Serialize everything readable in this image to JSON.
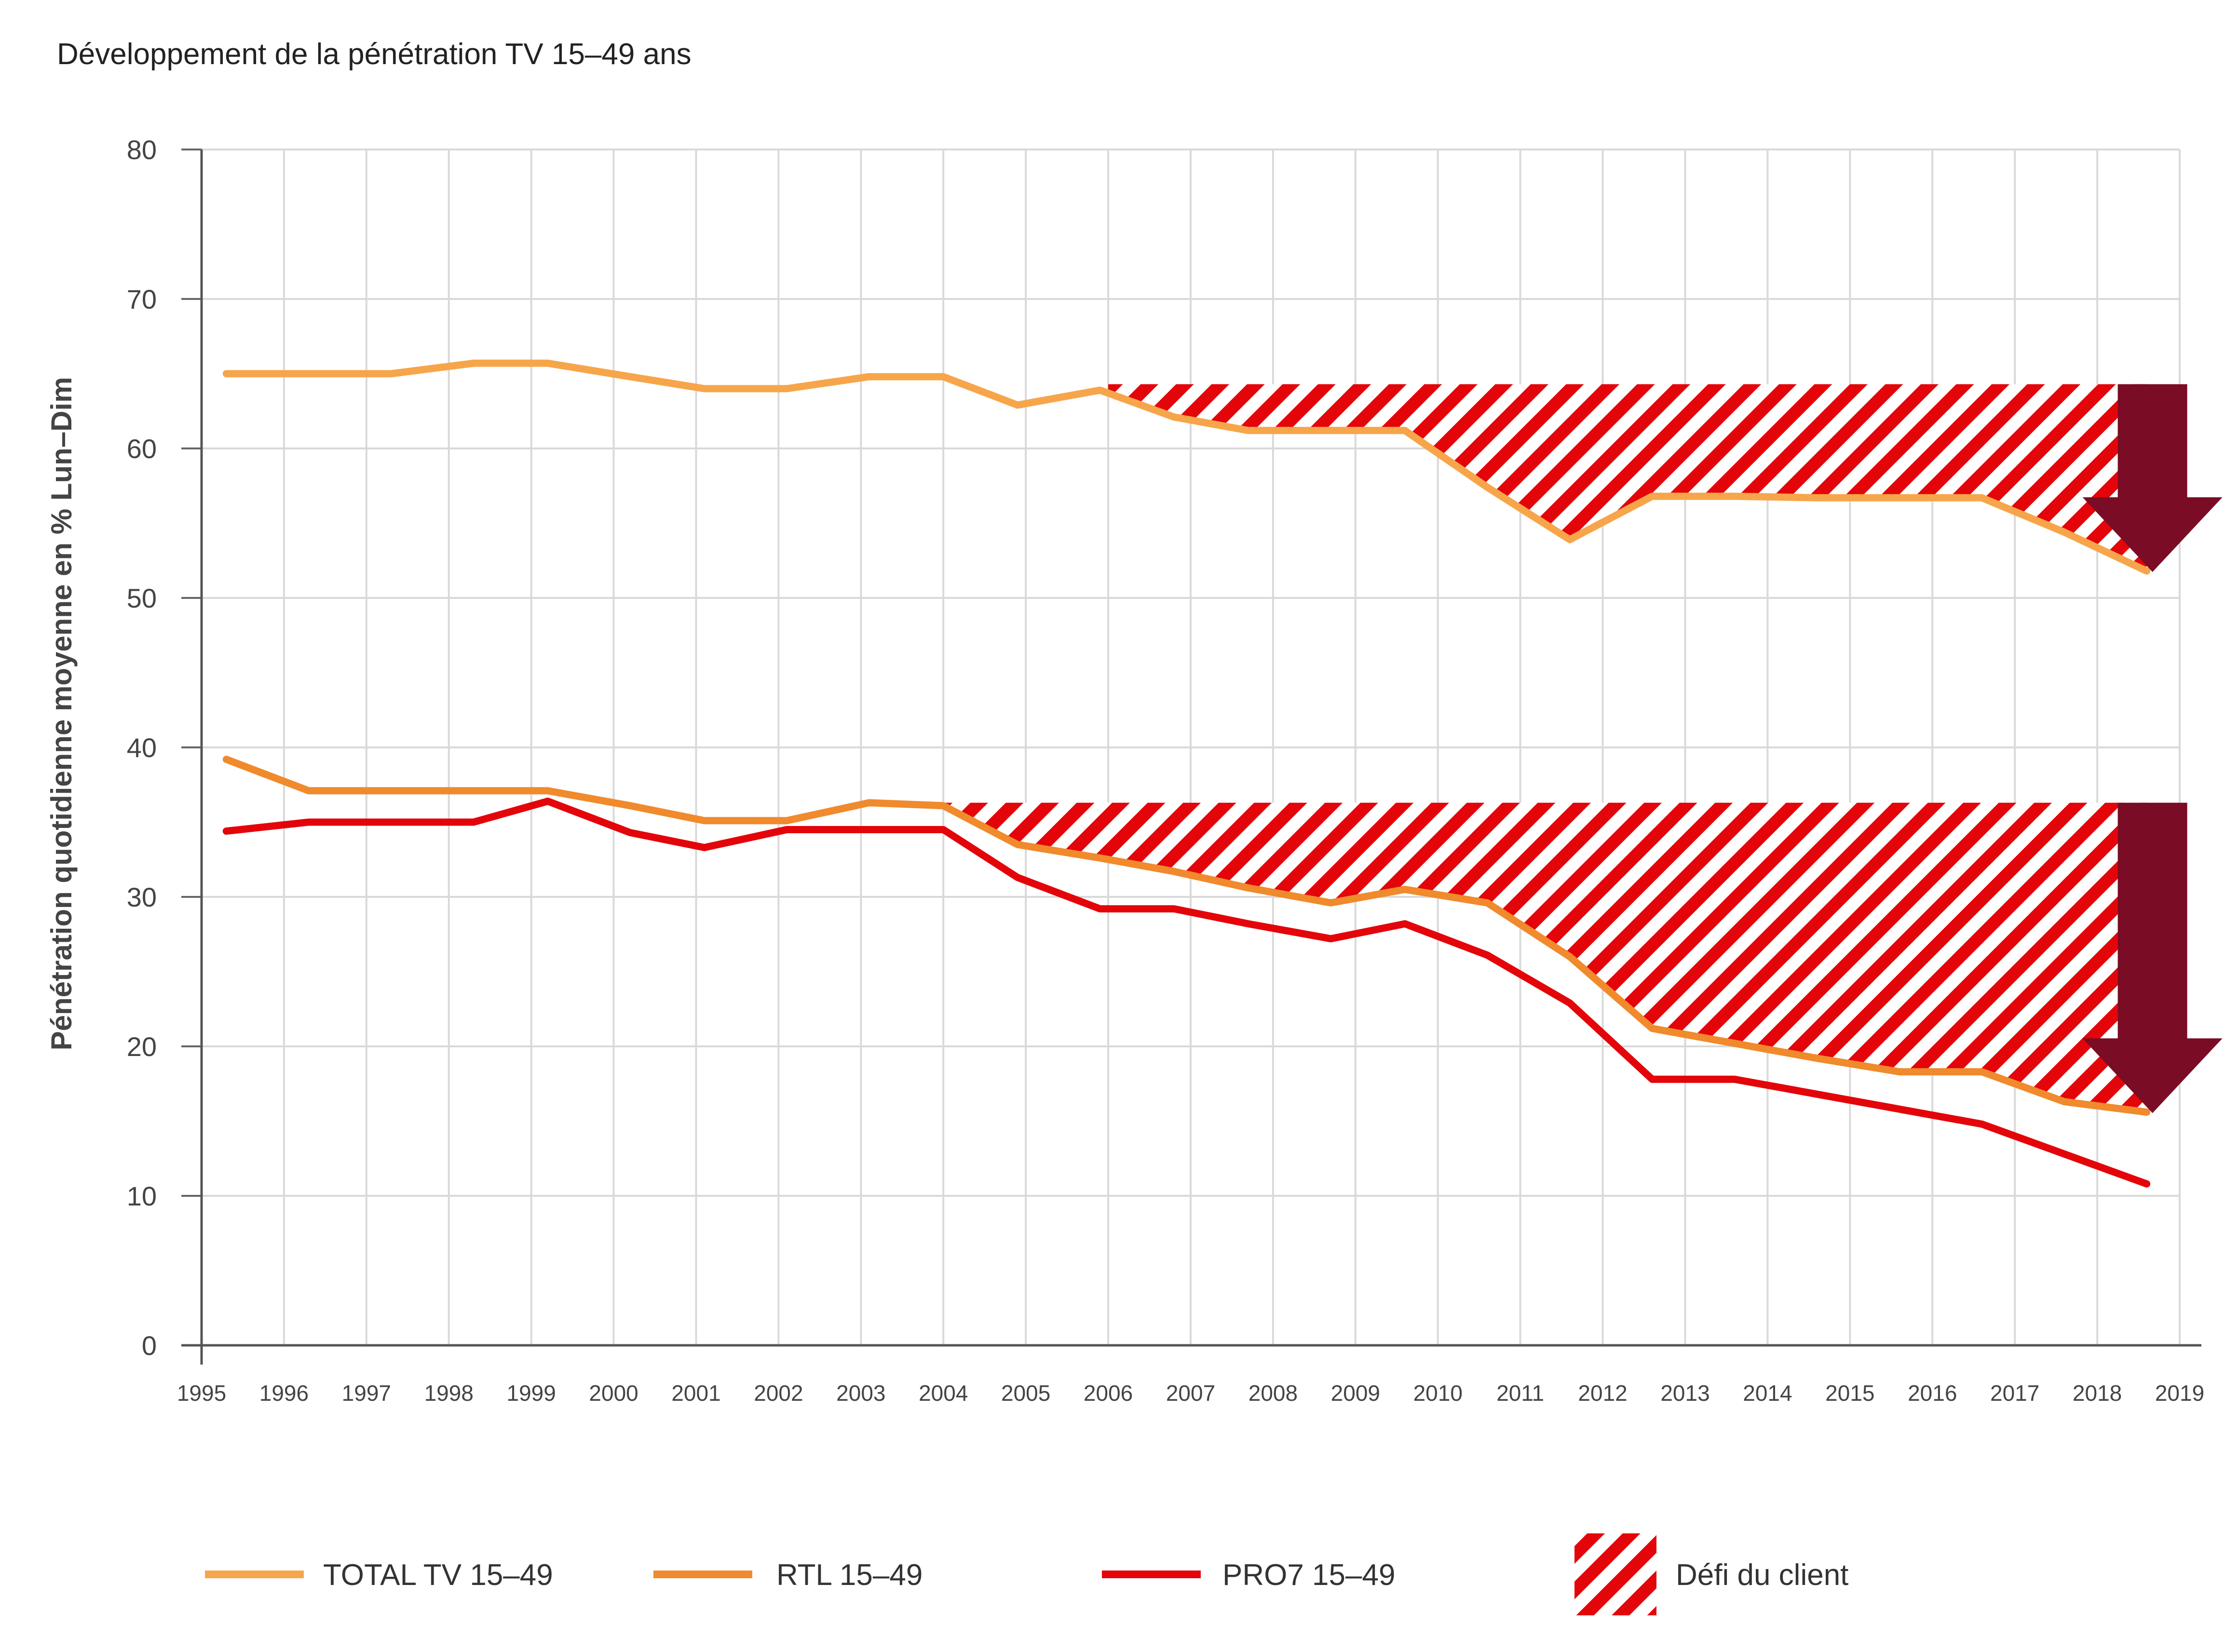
{
  "chart_data": {
    "type": "line",
    "title": "Développement de la pénétration TV 15–49 ans",
    "ylabel": "Pénétration quotidienne moyenne en % Lun–Dim",
    "xlabel": "",
    "ylim": [
      0,
      80
    ],
    "yticks": [
      0,
      10,
      20,
      30,
      40,
      50,
      60,
      70,
      80
    ],
    "x_categories": [
      "1995",
      "1996",
      "1997",
      "1998",
      "1999",
      "2000",
      "2001",
      "2002",
      "2003",
      "2004",
      "2005",
      "2006",
      "2007",
      "2008",
      "2009",
      "2010",
      "2011",
      "2012",
      "2013",
      "2014",
      "2015",
      "2016",
      "2017",
      "2018",
      "2019"
    ],
    "grid": true,
    "series": [
      {
        "name": "TOTAL TV 15–49",
        "color": "#F7A54A",
        "x": [
          1995.3,
          1996.3,
          1997.3,
          1998.3,
          1999.2,
          2000.2,
          2001.1,
          2002.1,
          2003.1,
          2004.0,
          2004.9,
          2005.9,
          2006.8,
          2007.7,
          2008.7,
          2009.6,
          2010.6,
          2011.6,
          2012.6,
          2013.6,
          2014.6,
          2015.6,
          2016.6,
          2017.6,
          2018.6
        ],
        "values": [
          65.0,
          65.0,
          65.0,
          65.7,
          65.7,
          64.8,
          64.0,
          64.0,
          64.8,
          64.8,
          62.9,
          63.9,
          62.1,
          61.2,
          61.2,
          61.2,
          57.4,
          53.9,
          56.8,
          56.8,
          56.7,
          56.7,
          56.7,
          54.4,
          51.8
        ]
      },
      {
        "name": "RTL 15–49",
        "color": "#F08A2C",
        "x": [
          1995.3,
          1996.3,
          1997.3,
          1998.3,
          1999.2,
          2000.2,
          2001.1,
          2002.1,
          2003.1,
          2004.0,
          2004.9,
          2005.9,
          2006.8,
          2007.7,
          2008.7,
          2009.6,
          2010.6,
          2011.6,
          2012.6,
          2013.6,
          2014.6,
          2015.6,
          2016.6,
          2017.6,
          2018.6
        ],
        "values": [
          39.2,
          37.1,
          37.1,
          37.1,
          37.1,
          36.1,
          35.1,
          35.1,
          36.3,
          36.1,
          33.5,
          32.6,
          31.7,
          30.6,
          29.6,
          30.5,
          29.6,
          26.0,
          21.2,
          20.2,
          19.2,
          18.3,
          18.3,
          16.3,
          15.6
        ]
      },
      {
        "name": "PRO7 15–49",
        "color": "#E3050A",
        "x": [
          1995.3,
          1996.3,
          1997.3,
          1998.3,
          1999.2,
          2000.2,
          2001.1,
          2002.1,
          2003.1,
          2004.0,
          2004.9,
          2005.9,
          2006.8,
          2007.7,
          2008.7,
          2009.6,
          2010.6,
          2011.6,
          2012.6,
          2013.6,
          2014.6,
          2015.6,
          2016.6,
          2017.6,
          2018.6
        ],
        "values": [
          34.4,
          35.0,
          35.0,
          35.0,
          36.4,
          34.3,
          33.3,
          34.5,
          34.5,
          34.5,
          31.3,
          29.2,
          29.2,
          28.2,
          27.2,
          28.2,
          26.1,
          22.9,
          17.8,
          17.8,
          16.8,
          15.8,
          14.8,
          12.8,
          10.8
        ]
      }
    ],
    "challenge_areas": [
      {
        "name": "Défi du client",
        "series": "TOTAL TV 15–49",
        "baseline": 64.3,
        "x_start": 2006.0,
        "x_end": 2018.6
      },
      {
        "name": "Défi du client",
        "series": "RTL 15–49",
        "baseline": 36.3,
        "x_start": 2004.0,
        "x_end": 2018.6
      }
    ],
    "arrows": [
      {
        "x": 2018.6,
        "from": 64.3,
        "to": 51.8,
        "color": "#7A0C25"
      },
      {
        "x": 2018.6,
        "from": 36.3,
        "to": 15.6,
        "color": "#7A0C25"
      }
    ]
  },
  "legend": {
    "items": [
      {
        "label": "TOTAL TV 15–49",
        "color": "#F7A54A",
        "kind": "line"
      },
      {
        "label": "RTL 15–49",
        "color": "#F08A2C",
        "kind": "line"
      },
      {
        "label": "PRO7 15–49",
        "color": "#E3050A",
        "kind": "line"
      },
      {
        "label": "Défi du client",
        "color": "#E3050A",
        "kind": "hatch"
      }
    ]
  }
}
